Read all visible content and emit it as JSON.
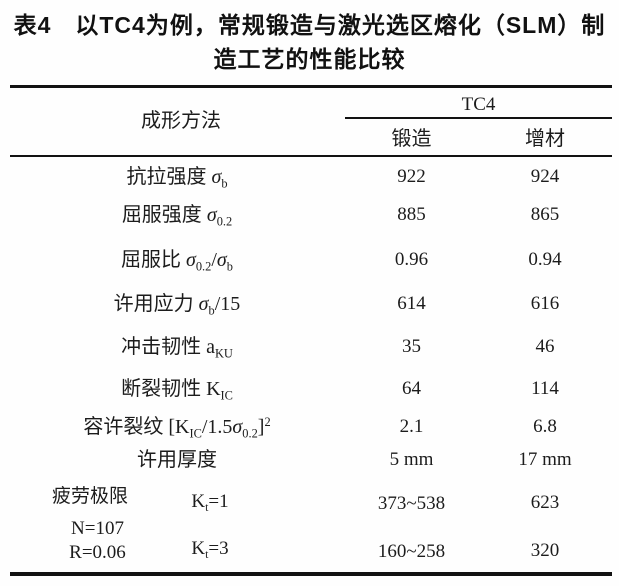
{
  "title": {
    "line1": "表4　以TC4为例，常规锻造与激光选区熔化（SLM）制",
    "line2": "造工艺的性能比较"
  },
  "table": {
    "header": {
      "row_label": "成形方法",
      "group_label": "TC4",
      "col_forge": "锻造",
      "col_additive": "增材"
    },
    "rows": [
      {
        "label": [
          {
            "t": "抗拉强度 "
          },
          {
            "t": "σ",
            "i": 1
          },
          {
            "t": "b",
            "s": "sub"
          }
        ],
        "forge": "922",
        "additive": "924"
      },
      {
        "label": [
          {
            "t": "屈服强度 "
          },
          {
            "t": "σ",
            "i": 1
          },
          {
            "t": "0.2",
            "s": "sub"
          }
        ],
        "forge": "885",
        "additive": "865"
      },
      {
        "label": [
          {
            "t": "屈服比 "
          },
          {
            "t": "σ",
            "i": 1
          },
          {
            "t": "0.2",
            "s": "sub"
          },
          {
            "t": "/"
          },
          {
            "t": "σ",
            "i": 1
          },
          {
            "t": "b",
            "s": "sub"
          }
        ],
        "forge": "0.96",
        "additive": "0.94"
      },
      {
        "label": [
          {
            "t": "许用应力 "
          },
          {
            "t": "σ",
            "i": 1
          },
          {
            "t": "b",
            "s": "sub"
          },
          {
            "t": "/15"
          }
        ],
        "forge": "614",
        "additive": "616"
      },
      {
        "label": [
          {
            "t": "冲击韧性 a"
          },
          {
            "t": "KU",
            "s": "sub"
          }
        ],
        "forge": "35",
        "additive": "46"
      },
      {
        "label": [
          {
            "t": "断裂韧性 K"
          },
          {
            "t": "IC",
            "s": "sub"
          }
        ],
        "forge": "64",
        "additive": "114"
      },
      {
        "label": [
          {
            "t": "容许裂纹 [K"
          },
          {
            "t": "IC",
            "s": "sub"
          },
          {
            "t": "/1.5"
          },
          {
            "t": "σ",
            "i": 1
          },
          {
            "t": "0.2",
            "s": "sub"
          },
          {
            "t": "]"
          },
          {
            "t": "2",
            "s": "sup"
          }
        ],
        "forge": "2.1",
        "additive": "6.8"
      },
      {
        "label": [
          {
            "t": "许用厚度"
          }
        ],
        "forge": "5 mm",
        "additive": "17 mm"
      }
    ],
    "fatigue": {
      "group_label": "疲劳极限",
      "condition1": "N=107",
      "condition2": "R=0.06",
      "rows": [
        {
          "kt": [
            {
              "t": "K"
            },
            {
              "t": "t",
              "s": "sub"
            },
            {
              "t": "=1"
            }
          ],
          "forge": "373~538",
          "additive": "623"
        },
        {
          "kt": [
            {
              "t": "K"
            },
            {
              "t": "t",
              "s": "sub"
            },
            {
              "t": "=3"
            }
          ],
          "forge": "160~258",
          "additive": "320"
        }
      ]
    }
  }
}
